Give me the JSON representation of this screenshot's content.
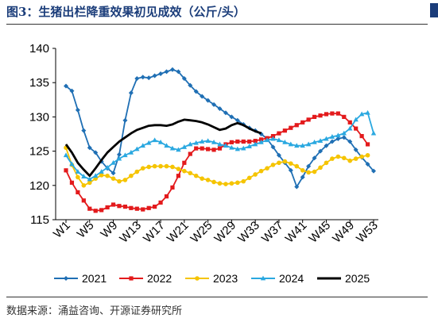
{
  "header": {
    "title": "图3：生猪出栏降重效果初见成效（公斤/头）"
  },
  "footer": {
    "source": "数据来源：涌益咨询、开源证券研究所"
  },
  "chart_data": {
    "type": "line",
    "title": "",
    "xlabel": "",
    "ylabel": "",
    "ylim": [
      115,
      140
    ],
    "yticks": [
      115,
      120,
      125,
      130,
      135,
      140
    ],
    "grid": false,
    "legend": "bottom",
    "x": [
      1,
      2,
      3,
      4,
      5,
      6,
      7,
      8,
      9,
      10,
      11,
      12,
      13,
      14,
      15,
      16,
      17,
      18,
      19,
      20,
      21,
      22,
      23,
      24,
      25,
      26,
      27,
      28,
      29,
      30,
      31,
      32,
      33,
      34,
      35,
      36,
      37,
      38,
      39,
      40,
      41,
      42,
      43,
      44,
      45,
      46,
      47,
      48,
      49,
      50,
      51,
      52,
      53
    ],
    "xtick_labels": [
      "W1",
      "W5",
      "W9",
      "W13",
      "W17",
      "W21",
      "W25",
      "W29",
      "W33",
      "W37",
      "W41",
      "W45",
      "W49",
      "W53"
    ],
    "xtick_values": [
      1,
      5,
      9,
      13,
      17,
      21,
      25,
      29,
      33,
      37,
      41,
      45,
      49,
      53
    ],
    "series": [
      {
        "name": "2021",
        "color": "#1f6fb4",
        "marker": "diamond",
        "values": [
          134.5,
          133.8,
          131.0,
          128.0,
          125.5,
          124.8,
          123.5,
          122.5,
          121.8,
          124.5,
          129.5,
          133.5,
          135.6,
          135.8,
          135.7,
          136.0,
          136.3,
          136.6,
          136.9,
          136.6,
          135.6,
          134.6,
          133.7,
          133.0,
          132.4,
          131.8,
          131.2,
          130.6,
          130.0,
          129.5,
          128.9,
          128.4,
          128.0,
          127.5,
          126.8,
          125.6,
          124.4,
          123.3,
          122.2,
          119.8,
          121.2,
          122.8,
          124.0,
          125.0,
          125.8,
          126.4,
          126.8,
          127.0,
          126.4,
          125.2,
          124.1,
          123.1,
          122.1
        ]
      },
      {
        "name": "2022",
        "color": "#e31a1c",
        "marker": "square",
        "values": [
          122.2,
          120.4,
          119.0,
          117.8,
          116.6,
          116.3,
          116.4,
          116.8,
          117.2,
          117.0,
          116.9,
          116.7,
          116.6,
          116.5,
          116.7,
          116.9,
          117.5,
          118.4,
          119.7,
          121.4,
          123.3,
          124.6,
          125.4,
          125.4,
          125.3,
          125.2,
          125.4,
          126.0,
          126.3,
          126.4,
          126.4,
          126.4,
          126.5,
          126.7,
          126.9,
          127.2,
          127.6,
          128.0,
          128.4,
          128.8,
          129.2,
          129.6,
          130.0,
          130.2,
          130.4,
          130.5,
          130.5,
          130.0,
          129.2,
          128.3,
          127.2,
          126.0,
          null
        ]
      },
      {
        "name": "2023",
        "color": "#f5c400",
        "marker": "circle",
        "values": [
          125.5,
          123.0,
          121.2,
          120.0,
          120.4,
          121.0,
          121.5,
          121.4,
          121.0,
          120.6,
          120.8,
          121.4,
          122.0,
          122.5,
          122.7,
          122.8,
          122.8,
          122.8,
          122.7,
          122.4,
          122.1,
          121.8,
          121.4,
          121.0,
          120.8,
          120.5,
          120.3,
          120.2,
          120.3,
          120.4,
          120.6,
          121.1,
          121.6,
          122.1,
          122.5,
          123.0,
          123.3,
          123.5,
          123.2,
          122.8,
          122.2,
          121.9,
          122.0,
          122.6,
          123.3,
          123.9,
          124.2,
          124.0,
          123.6,
          123.9,
          124.2,
          124.4,
          null
        ]
      },
      {
        "name": "2024",
        "color": "#2aa8e0",
        "marker": "triangle",
        "values": [
          124.4,
          123.1,
          122.0,
          121.3,
          120.9,
          121.4,
          122.0,
          122.6,
          123.3,
          123.9,
          124.4,
          124.8,
          125.3,
          125.8,
          126.2,
          126.6,
          126.3,
          125.8,
          125.4,
          125.2,
          125.6,
          126.0,
          126.2,
          126.4,
          126.5,
          126.3,
          126.0,
          125.8,
          125.5,
          125.3,
          125.4,
          125.7,
          126.0,
          126.3,
          126.6,
          126.8,
          126.6,
          126.3,
          126.0,
          125.8,
          125.8,
          126.0,
          126.3,
          126.5,
          126.8,
          127.1,
          127.3,
          127.6,
          128.3,
          129.6,
          130.4,
          130.6,
          127.6
        ]
      },
      {
        "name": "2025",
        "color": "#000000",
        "marker": "none",
        "values": [
          126.0,
          124.8,
          123.3,
          122.3,
          121.4,
          122.5,
          123.7,
          124.8,
          125.6,
          126.4,
          127.0,
          127.6,
          128.1,
          128.4,
          128.7,
          128.8,
          128.8,
          128.7,
          128.9,
          129.3,
          129.6,
          129.5,
          129.4,
          129.2,
          128.9,
          128.5,
          128.1,
          128.3,
          128.8,
          129.1,
          128.8,
          128.3,
          127.9,
          127.6,
          null,
          null,
          null,
          null,
          null,
          null,
          null,
          null,
          null,
          null,
          null,
          null,
          null,
          null,
          null,
          null,
          null,
          null,
          null
        ]
      }
    ]
  }
}
